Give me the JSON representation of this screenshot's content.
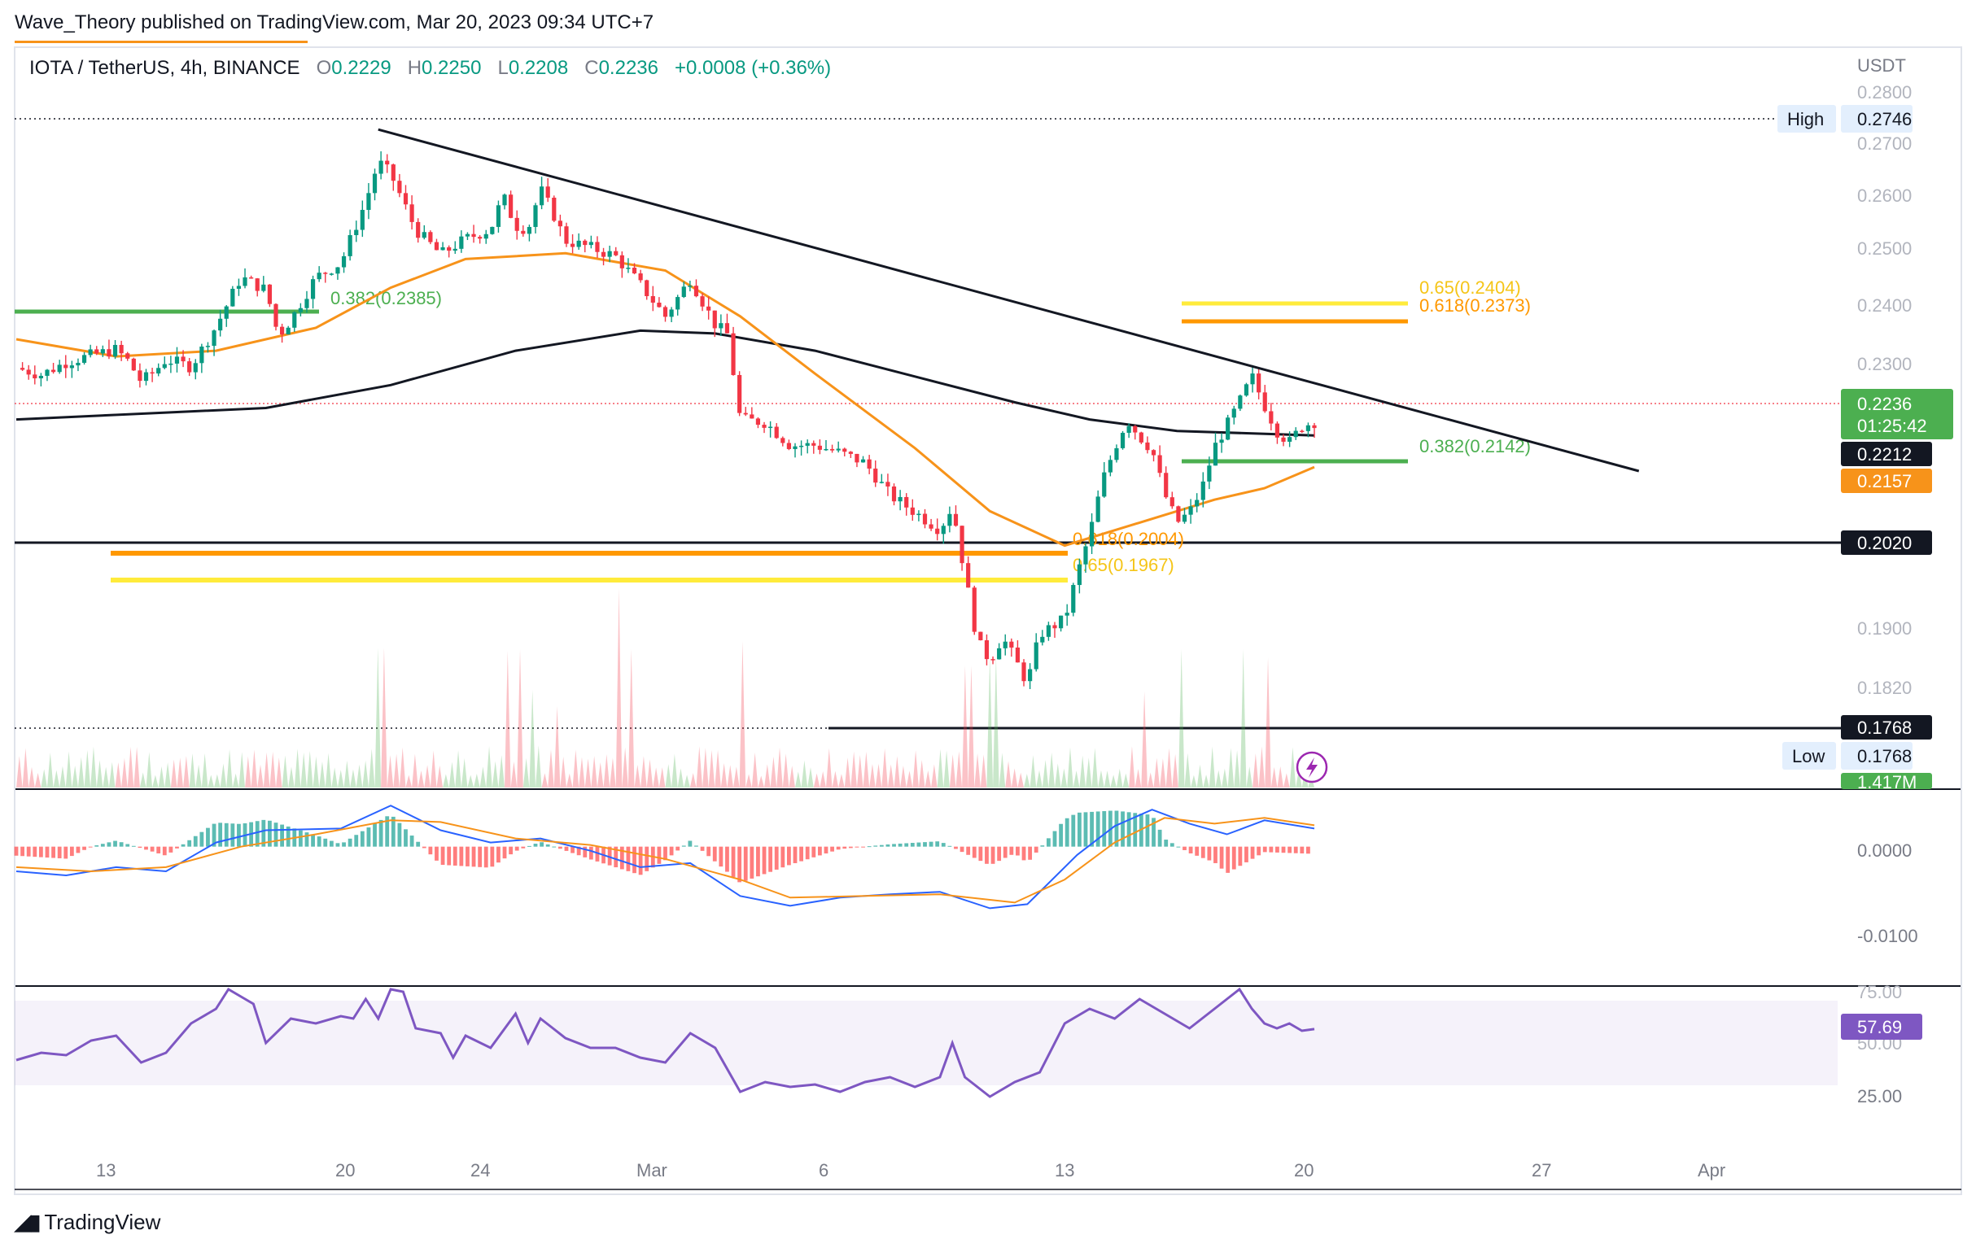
{
  "header": {
    "publisher": "Wave_Theory published on TradingView.com, Mar 20, 2023 09:34 UTC+7"
  },
  "legend": {
    "symbol": "IOTA / TetherUS, 4h, BINANCE",
    "open_label": "O",
    "open": "0.2229",
    "high_label": "H",
    "high": "0.2250",
    "low_label": "L",
    "low": "0.2208",
    "close_label": "C",
    "close": "0.2236",
    "change": "+0.0008 (+0.36%)"
  },
  "footer": {
    "brand": "TradingView"
  },
  "colors": {
    "up": "#089981",
    "down": "#f23645",
    "ema_orange": "#f7931a",
    "ma_black": "#131722",
    "fib_yellow": "#ffeb3b",
    "fib_orange": "#ff9800",
    "fib_green": "#4caf50",
    "macd_blue": "#2962ff",
    "rsi_purple": "#7e57c2",
    "price_tag_green": "#4caf50"
  },
  "chart_data": [
    {
      "type": "candlestick",
      "title": "IOTA / TetherUS, 4h, BINANCE",
      "currency": "USDT",
      "y_ticks": [
        "0.2800",
        "0.2700",
        "0.2600",
        "0.2500",
        "0.2400",
        "0.2300",
        "0.2212",
        "0.2157",
        "0.2020",
        "0.1900",
        "0.1820"
      ],
      "ylim": [
        0.17,
        0.283
      ],
      "x_ticks": [
        "13",
        "20",
        "24",
        "Mar",
        "6",
        "13",
        "20",
        "27",
        "Apr"
      ],
      "high_label": "High",
      "high_value": "0.2746",
      "low_label": "Low",
      "low_value": "0.1768",
      "last_price": "0.2236",
      "countdown": "01:25:42",
      "ma200_value": "0.2212",
      "ema50_value": "0.2157",
      "support_value": "0.2020",
      "low_support_value": "0.1768",
      "volume_value": "1.417M",
      "fib_levels": [
        {
          "label": "0.382(0.2385)",
          "value": 0.2385,
          "color": "green"
        },
        {
          "label": "0.65(0.2404)",
          "value": 0.2404,
          "color": "yellow"
        },
        {
          "label": "0.618(0.2373)",
          "value": 0.2373,
          "color": "orange"
        },
        {
          "label": "0.382(0.2142)",
          "value": 0.2142,
          "color": "green"
        },
        {
          "label": "0.618(0.2004)",
          "value": 0.2004,
          "color": "orange"
        },
        {
          "label": "0.65(0.1967)",
          "value": 0.1967,
          "color": "yellow"
        }
      ],
      "price_path": [
        [
          0,
          0.233
        ],
        [
          20,
          0.2318
        ],
        [
          40,
          0.234
        ],
        [
          60,
          0.2352
        ],
        [
          80,
          0.2362
        ],
        [
          90,
          0.2341
        ],
        [
          100,
          0.2306
        ],
        [
          110,
          0.2322
        ],
        [
          120,
          0.2345
        ],
        [
          140,
          0.2332
        ],
        [
          160,
          0.2402
        ],
        [
          180,
          0.2488
        ],
        [
          200,
          0.2466
        ],
        [
          210,
          0.2386
        ],
        [
          220,
          0.2414
        ],
        [
          240,
          0.2488
        ],
        [
          260,
          0.2513
        ],
        [
          280,
          0.262
        ],
        [
          290,
          0.269
        ],
        [
          300,
          0.2668
        ],
        [
          320,
          0.2571
        ],
        [
          340,
          0.2528
        ],
        [
          360,
          0.2555
        ],
        [
          380,
          0.2572
        ],
        [
          390,
          0.263
        ],
        [
          400,
          0.2578
        ],
        [
          410,
          0.2572
        ],
        [
          420,
          0.2642
        ],
        [
          430,
          0.26
        ],
        [
          440,
          0.2552
        ],
        [
          460,
          0.254
        ],
        [
          480,
          0.2525
        ],
        [
          500,
          0.2475
        ],
        [
          520,
          0.242
        ],
        [
          540,
          0.2485
        ],
        [
          560,
          0.2405
        ],
        [
          570,
          0.2388
        ],
        [
          580,
          0.224
        ],
        [
          600,
          0.2235
        ],
        [
          620,
          0.2195
        ],
        [
          640,
          0.2195
        ],
        [
          660,
          0.2182
        ],
        [
          680,
          0.2164
        ],
        [
          700,
          0.2108
        ],
        [
          720,
          0.2078
        ],
        [
          740,
          0.2048
        ],
        [
          750,
          0.209
        ],
        [
          760,
          0.197
        ],
        [
          770,
          0.1852
        ],
        [
          780,
          0.182
        ],
        [
          790,
          0.186
        ],
        [
          800,
          0.1822
        ],
        [
          810,
          0.178
        ],
        [
          820,
          0.1865
        ],
        [
          840,
          0.1892
        ],
        [
          850,
          0.197
        ],
        [
          860,
          0.204
        ],
        [
          870,
          0.2132
        ],
        [
          880,
          0.219
        ],
        [
          890,
          0.224
        ],
        [
          900,
          0.221
        ],
        [
          910,
          0.2187
        ],
        [
          920,
          0.211
        ],
        [
          930,
          0.206
        ],
        [
          940,
          0.2078
        ],
        [
          950,
          0.212
        ],
        [
          960,
          0.2192
        ],
        [
          970,
          0.223
        ],
        [
          980,
          0.227
        ],
        [
          990,
          0.2315
        ],
        [
          1000,
          0.2265
        ],
        [
          1010,
          0.222
        ],
        [
          1020,
          0.22
        ],
        [
          1030,
          0.2228
        ],
        [
          1040,
          0.2236
        ]
      ],
      "ma200_path": [
        [
          0,
          0.224
        ],
        [
          200,
          0.226
        ],
        [
          300,
          0.23
        ],
        [
          400,
          0.236
        ],
        [
          500,
          0.2395
        ],
        [
          560,
          0.239
        ],
        [
          640,
          0.236
        ],
        [
          720,
          0.2315
        ],
        [
          800,
          0.227
        ],
        [
          860,
          0.224
        ],
        [
          930,
          0.222
        ],
        [
          1040,
          0.2212
        ]
      ],
      "ema50_path": [
        [
          0,
          0.238
        ],
        [
          80,
          0.235
        ],
        [
          160,
          0.236
        ],
        [
          240,
          0.24
        ],
        [
          300,
          0.247
        ],
        [
          360,
          0.252
        ],
        [
          440,
          0.253
        ],
        [
          520,
          0.25
        ],
        [
          580,
          0.242
        ],
        [
          640,
          0.232
        ],
        [
          720,
          0.219
        ],
        [
          780,
          0.208
        ],
        [
          840,
          0.202
        ],
        [
          900,
          0.206
        ],
        [
          960,
          0.21
        ],
        [
          1000,
          0.212
        ],
        [
          1040,
          0.2157
        ]
      ],
      "trendline": {
        "from": [
          290,
          0.2746
        ],
        "to": [
          1300,
          0.215
        ]
      }
    },
    {
      "type": "area",
      "title": "Volume",
      "volume_value": "1.417M"
    },
    {
      "type": "line",
      "title": "MACD",
      "y_ticks": [
        "0.0000",
        "-0.0100"
      ],
      "ylim": [
        -0.013,
        0.0065
      ],
      "macd_path": [
        [
          0,
          -0.003
        ],
        [
          40,
          -0.0035
        ],
        [
          80,
          -0.0025
        ],
        [
          120,
          -0.003
        ],
        [
          160,
          0.0005
        ],
        [
          200,
          0.002
        ],
        [
          260,
          0.0022
        ],
        [
          300,
          0.005
        ],
        [
          340,
          0.002
        ],
        [
          380,
          0.0005
        ],
        [
          420,
          0.001
        ],
        [
          460,
          -0.0005
        ],
        [
          500,
          -0.0025
        ],
        [
          540,
          -0.002
        ],
        [
          580,
          -0.006
        ],
        [
          620,
          -0.0072
        ],
        [
          660,
          -0.0062
        ],
        [
          700,
          -0.0058
        ],
        [
          740,
          -0.0055
        ],
        [
          780,
          -0.0075
        ],
        [
          810,
          -0.007
        ],
        [
          850,
          -0.001
        ],
        [
          880,
          0.0025
        ],
        [
          910,
          0.0045
        ],
        [
          940,
          0.0028
        ],
        [
          970,
          0.0015
        ],
        [
          1000,
          0.0032
        ],
        [
          1040,
          0.0022
        ]
      ],
      "signal_path": [
        [
          0,
          -0.0025
        ],
        [
          60,
          -0.003
        ],
        [
          120,
          -0.0025
        ],
        [
          180,
          0.0
        ],
        [
          240,
          0.0015
        ],
        [
          300,
          0.0032
        ],
        [
          340,
          0.003
        ],
        [
          400,
          0.001
        ],
        [
          460,
          0.0002
        ],
        [
          520,
          -0.0015
        ],
        [
          580,
          -0.004
        ],
        [
          620,
          -0.0062
        ],
        [
          680,
          -0.006
        ],
        [
          740,
          -0.0058
        ],
        [
          800,
          -0.0068
        ],
        [
          840,
          -0.004
        ],
        [
          880,
          0.0005
        ],
        [
          920,
          0.0035
        ],
        [
          960,
          0.0028
        ],
        [
          1000,
          0.0035
        ],
        [
          1040,
          0.0026
        ]
      ]
    },
    {
      "type": "line",
      "title": "RSI",
      "y_ticks": [
        "75.00",
        "57.69",
        "50.00",
        "25.00"
      ],
      "ylim": [
        20,
        80
      ],
      "current": "57.69",
      "rsi_path": [
        [
          0,
          45
        ],
        [
          20,
          48
        ],
        [
          40,
          47
        ],
        [
          60,
          53
        ],
        [
          80,
          55
        ],
        [
          100,
          44
        ],
        [
          120,
          48
        ],
        [
          140,
          60
        ],
        [
          160,
          66
        ],
        [
          170,
          74
        ],
        [
          190,
          68
        ],
        [
          200,
          52
        ],
        [
          220,
          62
        ],
        [
          240,
          60
        ],
        [
          260,
          63
        ],
        [
          270,
          62
        ],
        [
          280,
          70
        ],
        [
          290,
          62
        ],
        [
          300,
          74
        ],
        [
          310,
          73
        ],
        [
          320,
          58
        ],
        [
          340,
          56
        ],
        [
          350,
          46
        ],
        [
          360,
          55
        ],
        [
          380,
          50
        ],
        [
          400,
          64
        ],
        [
          410,
          52
        ],
        [
          420,
          62
        ],
        [
          430,
          58
        ],
        [
          440,
          54
        ],
        [
          460,
          50
        ],
        [
          480,
          50
        ],
        [
          500,
          46
        ],
        [
          520,
          44
        ],
        [
          540,
          56
        ],
        [
          560,
          50
        ],
        [
          580,
          32
        ],
        [
          600,
          36
        ],
        [
          620,
          34
        ],
        [
          640,
          35
        ],
        [
          660,
          32
        ],
        [
          680,
          36
        ],
        [
          700,
          38
        ],
        [
          720,
          34
        ],
        [
          740,
          38
        ],
        [
          750,
          52
        ],
        [
          760,
          38
        ],
        [
          780,
          30
        ],
        [
          800,
          36
        ],
        [
          820,
          40
        ],
        [
          840,
          60
        ],
        [
          860,
          66
        ],
        [
          880,
          62
        ],
        [
          900,
          70
        ],
        [
          920,
          64
        ],
        [
          940,
          58
        ],
        [
          960,
          66
        ],
        [
          970,
          70
        ],
        [
          980,
          74
        ],
        [
          990,
          66
        ],
        [
          1000,
          60
        ],
        [
          1010,
          58
        ],
        [
          1020,
          60
        ],
        [
          1030,
          57
        ],
        [
          1040,
          57.69
        ]
      ]
    }
  ]
}
